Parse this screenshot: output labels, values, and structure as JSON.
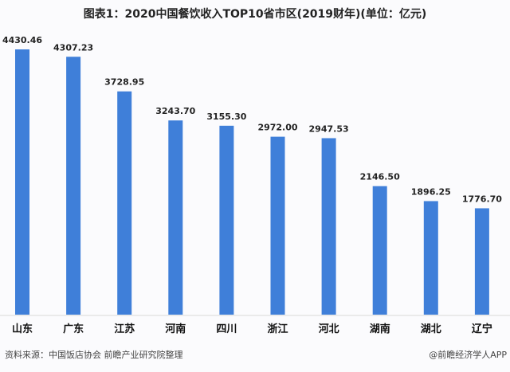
{
  "chart_data": {
    "type": "bar",
    "title": "图表1：2020中国餐饮收入TOP10省市区(2019财年)(单位：亿元)",
    "categories": [
      "山东",
      "广东",
      "江苏",
      "河南",
      "四川",
      "浙江",
      "河北",
      "湖南",
      "湖北",
      "辽宁"
    ],
    "values": [
      4430.46,
      4307.23,
      3728.95,
      3243.7,
      3155.3,
      2972.0,
      2947.53,
      2146.5,
      1896.25,
      1776.7
    ],
    "value_labels": [
      "4430.46",
      "4307.23",
      "3728.95",
      "3243.70",
      "3155.30",
      "2972.00",
      "2947.53",
      "2146.50",
      "1896.25",
      "1776.70"
    ],
    "xlabel": "",
    "ylabel": "",
    "ylim": [
      0,
      4430.46
    ],
    "grid": false,
    "bar_color": "#3f7fd9"
  },
  "footer": {
    "source": "资料来源：中国饭店协会  前瞻产业研究院整理",
    "credit": "@前瞻经济学人APP"
  }
}
